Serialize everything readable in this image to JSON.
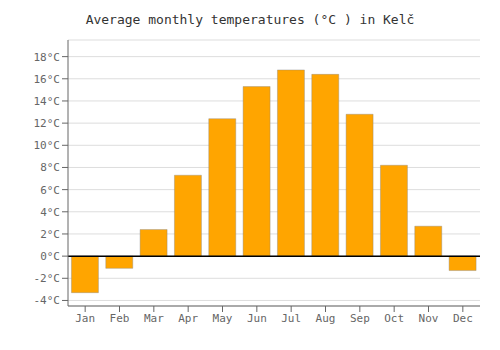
{
  "chart_data": {
    "type": "bar",
    "title": "Average monthly temperatures (°C ) in Kelč",
    "categories": [
      "Jan",
      "Feb",
      "Mar",
      "Apr",
      "May",
      "Jun",
      "Jul",
      "Aug",
      "Sep",
      "Oct",
      "Nov",
      "Dec"
    ],
    "values": [
      -3.3,
      -1.1,
      2.4,
      7.3,
      12.4,
      15.3,
      16.8,
      16.4,
      12.8,
      8.2,
      2.7,
      -1.3
    ],
    "color": "#FFA500",
    "ylim": [
      -4.5,
      19.5
    ],
    "yticks": [
      {
        "value": -4,
        "label": "-4°C"
      },
      {
        "value": -2,
        "label": "-2°C"
      },
      {
        "value": 0,
        "label": "0°C"
      },
      {
        "value": 2,
        "label": "2°C"
      },
      {
        "value": 4,
        "label": "4°C"
      },
      {
        "value": 6,
        "label": "6°C"
      },
      {
        "value": 8,
        "label": "8°C"
      },
      {
        "value": 10,
        "label": "10°C"
      },
      {
        "value": 12,
        "label": "12°C"
      },
      {
        "value": 14,
        "label": "14°C"
      },
      {
        "value": 16,
        "label": "16°C"
      },
      {
        "value": 18,
        "label": "18°C"
      }
    ],
    "grid": true
  }
}
